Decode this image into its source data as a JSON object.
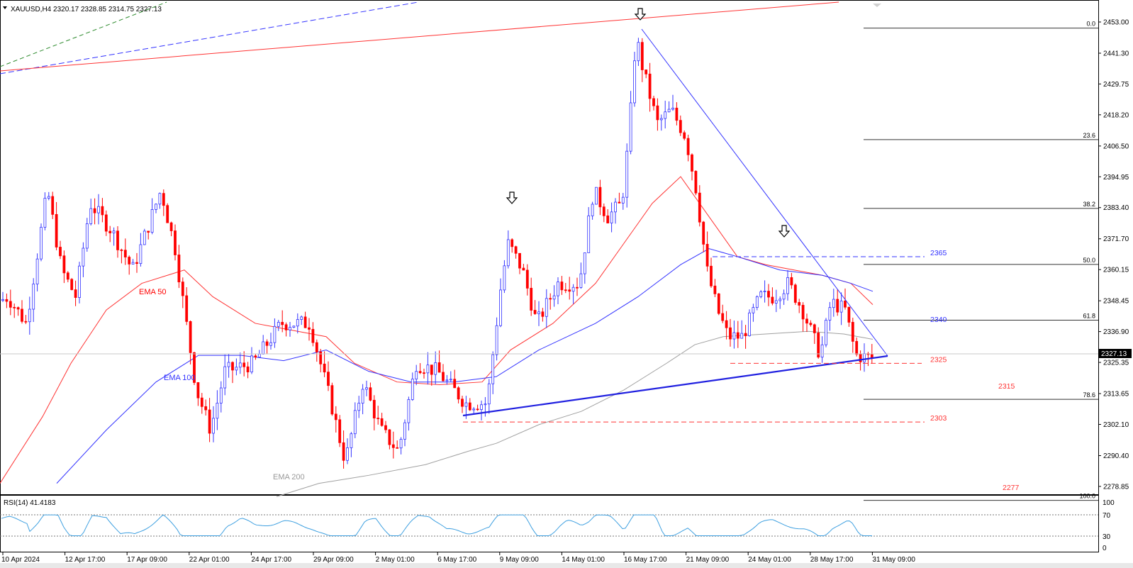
{
  "chart_data": {
    "type": "candlestick",
    "symbol_header": "XAUUSD,H4  2320.17 2328.85 2314.75 2327.13",
    "current_price": 2327.13,
    "ylim": [
      2269.0,
      2462.0
    ],
    "price_ticks": [
      "2453.00",
      "2441.30",
      "2429.75",
      "2418.20",
      "2406.50",
      "2394.95",
      "2383.40",
      "2371.70",
      "2360.15",
      "2348.45",
      "2336.90",
      "2325.35",
      "2313.65",
      "2302.10",
      "2290.40",
      "2278.85"
    ],
    "date_ticks": [
      "10 Apr 2024",
      "12 Apr 17:00",
      "17 Apr 09:00",
      "22 Apr 01:00",
      "24 Apr 17:00",
      "29 Apr 09:00",
      "2 May 01:00",
      "6 May 17:00",
      "9 May 09:00",
      "14 May 01:00",
      "16 May 17:00",
      "21 May 09:00",
      "24 May 01:00",
      "28 May 17:00",
      "31 May 09:00"
    ],
    "fibonacci_levels": [
      {
        "label": "0.0",
        "price": 2450.7
      },
      {
        "label": "23.6",
        "price": 2408.9
      },
      {
        "label": "38.2",
        "price": 2383.1
      },
      {
        "label": "50.0",
        "price": 2362.1
      },
      {
        "label": "61.8",
        "price": 2341.2
      },
      {
        "label": "78.6",
        "price": 2311.5
      },
      {
        "label": "100.0",
        "price": 2273.6
      }
    ],
    "horizontal_levels": [
      {
        "label": "2365",
        "price": 2365,
        "color": "#3333ff"
      },
      {
        "label": "2340",
        "price": 2340,
        "color": "#3333ff"
      },
      {
        "label": "2325",
        "price": 2325,
        "color": "#ff3333"
      },
      {
        "label": "2315",
        "price": 2315,
        "color": "#ff3333"
      },
      {
        "label": "2303",
        "price": 2303,
        "color": "#ff3333"
      },
      {
        "label": "2277",
        "price": 2277,
        "color": "#ff3333"
      }
    ],
    "indicator_labels": [
      {
        "text": "EMA 50",
        "color": "#ff0000"
      },
      {
        "text": "EMA 100",
        "color": "#3333ff"
      },
      {
        "text": "EMA 200",
        "color": "#999999"
      }
    ],
    "rsi": {
      "label": "RSI(14) 41.4183",
      "levels": [
        "100",
        "70",
        "30",
        "0"
      ],
      "overbought": 70,
      "oversold": 30
    },
    "colors": {
      "bull": "#3333ff",
      "bear": "#ff0000",
      "ema50": "#ff3333",
      "ema100": "#3333ff",
      "ema200": "#a0a0a0",
      "rsi": "#3fa0e0"
    }
  }
}
